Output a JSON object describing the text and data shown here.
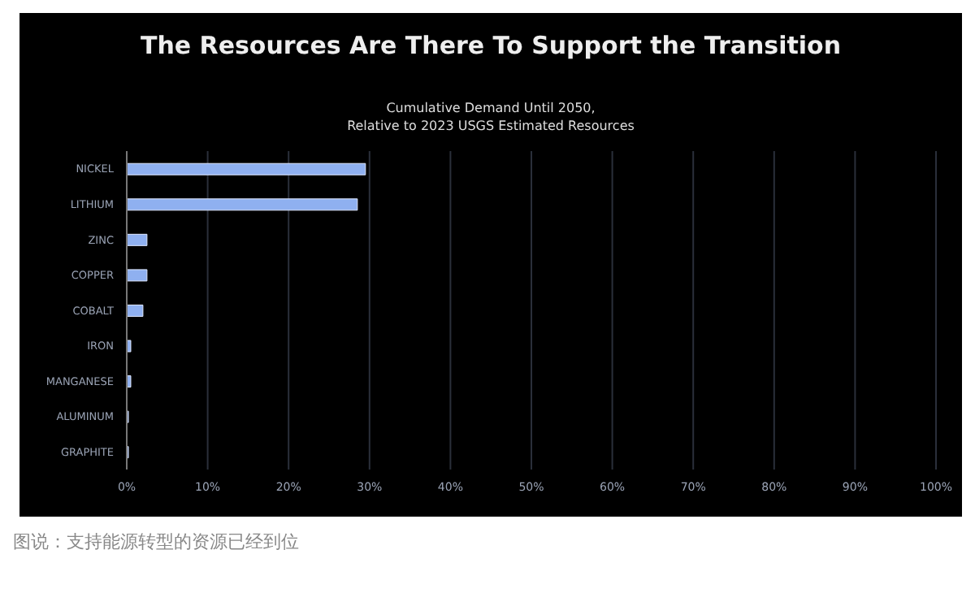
{
  "chart_data": {
    "type": "bar",
    "orientation": "horizontal",
    "title": "The Resources Are There To Support the Transition",
    "subtitle": "Cumulative Demand Until 2050,\nRelative to 2023 USGS Estimated Resources",
    "categories": [
      "NICKEL",
      "LITHIUM",
      "ZINC",
      "COPPER",
      "COBALT",
      "IRON",
      "MANGANESE",
      "ALUMINUM",
      "GRAPHITE"
    ],
    "values": [
      29.5,
      28.5,
      2.5,
      2.5,
      2,
      0.5,
      0.5,
      0.2,
      0.2
    ],
    "color": "#8fb0f0",
    "xlim": [
      0,
      100
    ],
    "xticks": [
      {
        "value": 0,
        "label": "0%"
      },
      {
        "value": 10,
        "label": "10%"
      },
      {
        "value": 20,
        "label": "20%"
      },
      {
        "value": 30,
        "label": "30%"
      },
      {
        "value": 40,
        "label": "40%"
      },
      {
        "value": 50,
        "label": "50%"
      },
      {
        "value": 60,
        "label": "60%"
      },
      {
        "value": 70,
        "label": "70%"
      },
      {
        "value": 80,
        "label": "80%"
      },
      {
        "value": 90,
        "label": "90%"
      },
      {
        "value": 100,
        "label": "100%"
      }
    ],
    "grid": "x",
    "annotations": [
      "图说：支持能源转型的资源已经到位"
    ]
  }
}
